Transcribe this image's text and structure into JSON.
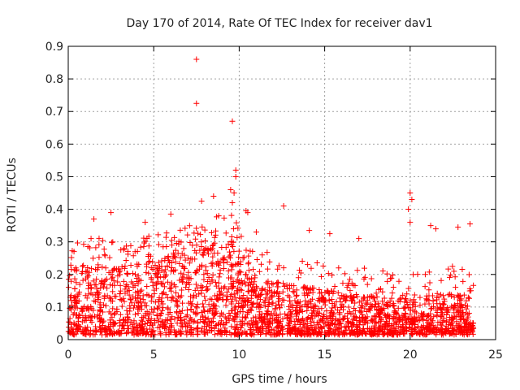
{
  "chart_data": {
    "type": "scatter",
    "title": "Day 170 of 2014, Rate Of TEC Index for receiver dav1",
    "xlabel": "GPS time / hours",
    "ylabel": "ROTI / TECUs",
    "xlim": [
      0,
      25
    ],
    "ylim": [
      0,
      0.9
    ],
    "grid": true,
    "x_ticks": [
      0,
      5,
      10,
      15,
      20,
      25
    ],
    "x_tick_labels": [
      "0",
      "5",
      "10",
      "15",
      "20",
      "25"
    ],
    "y_ticks": [
      0,
      0.1,
      0.2,
      0.3,
      0.4,
      0.5,
      0.6,
      0.7,
      0.8,
      0.9
    ],
    "y_tick_labels": [
      "0",
      "0.1",
      "0.2",
      "0.3",
      "0.4",
      "0.5",
      "0.6",
      "0.7",
      "0.8",
      "0.9"
    ],
    "marker": "plus",
    "series_color": "#ff0000",
    "x_range_of_data": [
      0,
      23.7
    ],
    "dense_cluster_levels": [
      [
        0.0,
        0.2
      ],
      [
        1.5,
        0.22
      ],
      [
        3.0,
        0.21
      ],
      [
        5.0,
        0.23
      ],
      [
        7.5,
        0.26
      ],
      [
        9.5,
        0.3
      ],
      [
        10.5,
        0.18
      ],
      [
        12.5,
        0.16
      ],
      [
        15.0,
        0.14
      ],
      [
        17.5,
        0.12
      ],
      [
        20.0,
        0.11
      ],
      [
        22.0,
        0.13
      ],
      [
        23.7,
        0.12
      ]
    ],
    "notable_points": [
      {
        "x": 7.5,
        "y": 0.86
      },
      {
        "x": 7.5,
        "y": 0.725
      },
      {
        "x": 9.6,
        "y": 0.67
      },
      {
        "x": 9.8,
        "y": 0.52
      },
      {
        "x": 9.8,
        "y": 0.5
      },
      {
        "x": 9.5,
        "y": 0.46
      },
      {
        "x": 9.7,
        "y": 0.45
      },
      {
        "x": 9.6,
        "y": 0.42
      },
      {
        "x": 7.8,
        "y": 0.425
      },
      {
        "x": 8.5,
        "y": 0.44
      },
      {
        "x": 12.6,
        "y": 0.41
      },
      {
        "x": 20.0,
        "y": 0.45
      },
      {
        "x": 20.1,
        "y": 0.43
      },
      {
        "x": 19.9,
        "y": 0.4
      },
      {
        "x": 20.0,
        "y": 0.36
      },
      {
        "x": 10.4,
        "y": 0.395
      },
      {
        "x": 10.5,
        "y": 0.39
      },
      {
        "x": 2.5,
        "y": 0.39
      },
      {
        "x": 4.5,
        "y": 0.36
      },
      {
        "x": 6.0,
        "y": 0.385
      },
      {
        "x": 1.5,
        "y": 0.37
      },
      {
        "x": 23.5,
        "y": 0.355
      },
      {
        "x": 21.2,
        "y": 0.35
      },
      {
        "x": 22.8,
        "y": 0.345
      },
      {
        "x": 21.5,
        "y": 0.34
      },
      {
        "x": 14.1,
        "y": 0.335
      },
      {
        "x": 15.3,
        "y": 0.325
      },
      {
        "x": 8.8,
        "y": 0.38
      },
      {
        "x": 11.0,
        "y": 0.33
      },
      {
        "x": 17.0,
        "y": 0.31
      }
    ]
  }
}
